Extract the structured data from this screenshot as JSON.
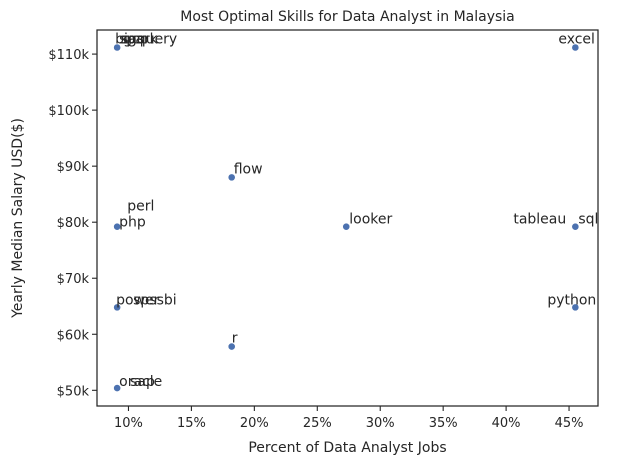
{
  "chart_data": {
    "type": "scatter",
    "title": "Most Optimal Skills for Data Analyst in Malaysia",
    "xlabel": "Percent of Data Analyst Jobs",
    "ylabel": "Yearly Median Salary USD($)",
    "xlim": [
      7.5,
      47.3
    ],
    "ylim": [
      47200,
      114300
    ],
    "xticks": [
      10,
      15,
      20,
      25,
      30,
      35,
      40,
      45
    ],
    "xtick_labels": [
      "10%",
      "15%",
      "20%",
      "25%",
      "30%",
      "35%",
      "40%",
      "45%"
    ],
    "yticks": [
      50000,
      60000,
      70000,
      80000,
      90000,
      100000,
      110000
    ],
    "ytick_labels": [
      "$50k",
      "$60k",
      "$70k",
      "$80k",
      "$90k",
      "$100k",
      "$110k"
    ],
    "grid": false,
    "marker_color": "#4c72b0",
    "points": [
      {
        "label": "bigquery",
        "x": 9.1,
        "y": 111175
      },
      {
        "label": "spark",
        "x": 9.1,
        "y": 111175
      },
      {
        "label": "gcp",
        "x": 9.1,
        "y": 111175
      },
      {
        "label": "sas",
        "x": 9.1,
        "y": 111175
      },
      {
        "label": "excel",
        "x": 45.5,
        "y": 111175
      },
      {
        "label": "flow",
        "x": 18.2,
        "y": 88000
      },
      {
        "label": "php",
        "x": 9.1,
        "y": 79200
      },
      {
        "label": "looker",
        "x": 27.3,
        "y": 79200
      },
      {
        "label": "tableau",
        "x": 45.5,
        "y": 79200
      },
      {
        "label": "sql",
        "x": 45.5,
        "y": 79200
      },
      {
        "label": "power bi",
        "x": 9.1,
        "y": 64800
      },
      {
        "label": "spss",
        "x": 9.1,
        "y": 64800
      },
      {
        "label": "python",
        "x": 45.5,
        "y": 64800
      },
      {
        "label": "r",
        "x": 18.2,
        "y": 57800
      },
      {
        "label": "oracle",
        "x": 9.1,
        "y": 50400
      },
      {
        "label": "sap",
        "x": 9.1,
        "y": 50400
      }
    ],
    "annotations": [
      {
        "text": "perl",
        "x": 9.9,
        "y": 83000
      }
    ]
  }
}
